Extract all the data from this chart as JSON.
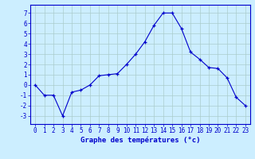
{
  "x": [
    0,
    1,
    2,
    3,
    4,
    5,
    6,
    7,
    8,
    9,
    10,
    11,
    12,
    13,
    14,
    15,
    16,
    17,
    18,
    19,
    20,
    21,
    22,
    23
  ],
  "y": [
    0,
    -1,
    -1,
    -3,
    -0.7,
    -0.5,
    0,
    0.9,
    1.0,
    1.1,
    2.0,
    3.0,
    4.2,
    5.8,
    7.0,
    7.0,
    5.5,
    3.2,
    2.5,
    1.7,
    1.6,
    0.7,
    -1.2,
    -2.0
  ],
  "line_color": "#0000cc",
  "marker": "+",
  "marker_size": 3,
  "bg_color": "#cceeff",
  "grid_color": "#aacccc",
  "xlabel": "Graphe des températures (°c)",
  "ylabel_ticks": [
    -3,
    -2,
    -1,
    0,
    1,
    2,
    3,
    4,
    5,
    6,
    7
  ],
  "ylim": [
    -3.8,
    7.8
  ],
  "xlim": [
    -0.5,
    23.5
  ],
  "axis_color": "#0000cc",
  "label_fontsize": 6.5,
  "tick_fontsize": 5.5
}
